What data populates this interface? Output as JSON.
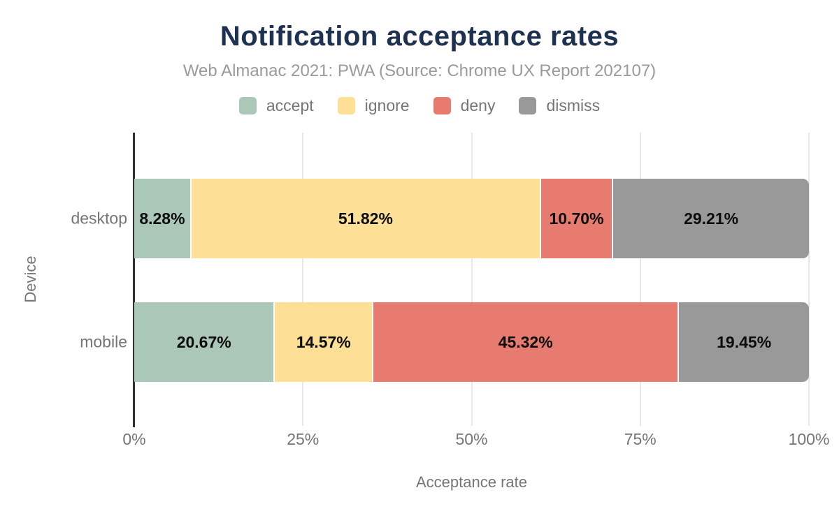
{
  "chart_data": {
    "type": "bar",
    "orientation": "horizontal",
    "stacked": true,
    "title": "Notification acceptance rates",
    "subtitle": "Web Almanac 2021: PWA (Source: Chrome UX Report 202107)",
    "xlabel": "Acceptance rate",
    "ylabel": "Device",
    "categories": [
      "desktop",
      "mobile"
    ],
    "series": [
      {
        "name": "accept",
        "color": "#aac7b8",
        "values": [
          8.28,
          20.67
        ]
      },
      {
        "name": "ignore",
        "color": "#fde095",
        "values": [
          51.82,
          14.57
        ]
      },
      {
        "name": "deny",
        "color": "#e87b6f",
        "values": [
          10.7,
          45.32
        ]
      },
      {
        "name": "dismiss",
        "color": "#999999",
        "values": [
          29.21,
          19.45
        ]
      }
    ],
    "data_labels": [
      [
        "8.28%",
        "51.82%",
        "10.70%",
        "29.21%"
      ],
      [
        "20.67%",
        "14.57%",
        "45.32%",
        "19.45%"
      ]
    ],
    "x_ticks": [
      "0%",
      "25%",
      "50%",
      "75%",
      "100%"
    ],
    "x_tick_values": [
      0,
      25,
      50,
      75,
      100
    ],
    "xlim": [
      0,
      100
    ],
    "grid": "vertical",
    "legend_position": "top"
  },
  "palette": {
    "background": "#ffffff",
    "title_color": "#1f3150",
    "subtitle_color": "#9a9a9a",
    "axis_text": "#757575",
    "grid_color": "#e8e8e8",
    "axis_line": "#2e2e2e",
    "label_color": "#0c0c0c"
  }
}
